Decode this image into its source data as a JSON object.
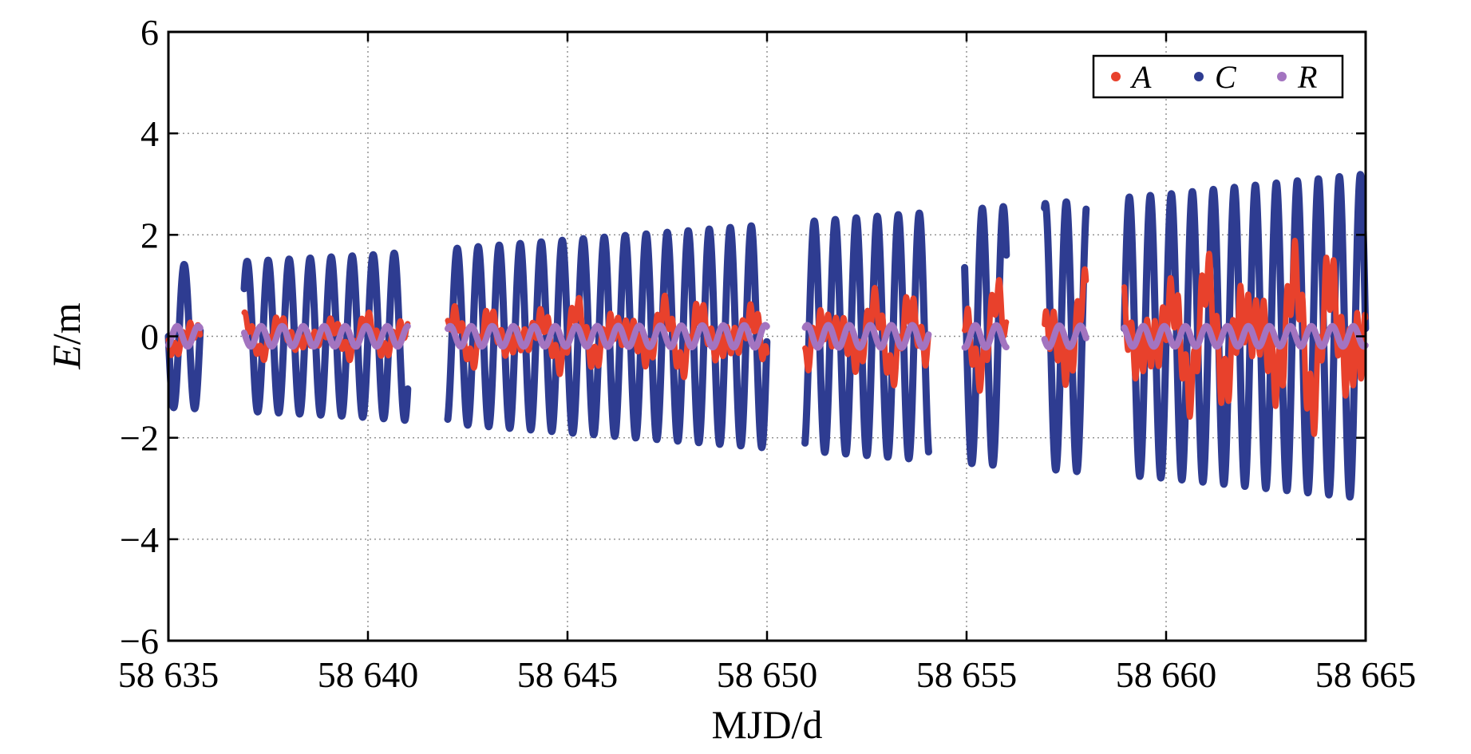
{
  "chart_data": {
    "type": "line",
    "title": "",
    "xlabel": "MJD/d",
    "ylabel_italic": "E",
    "ylabel_unit": "/m",
    "xlim": [
      58635,
      58665
    ],
    "ylim": [
      -6,
      6
    ],
    "xticks": [
      58635,
      58640,
      58645,
      58650,
      58655,
      58660,
      58665
    ],
    "xtick_labels": [
      "58 635",
      "58 640",
      "58 645",
      "58 650",
      "58 655",
      "58 660",
      "58 665"
    ],
    "yticks": [
      -6,
      -4,
      -2,
      0,
      2,
      4,
      6
    ],
    "ytick_labels": [
      "−6",
      "−4",
      "−2",
      "0",
      "2",
      "4",
      "6"
    ],
    "grid": true,
    "legend": "top-right",
    "data_gaps": [
      [
        58635.8,
        58636.9
      ],
      [
        58641.0,
        58642.0
      ],
      [
        58650.0,
        58650.95
      ],
      [
        58654.05,
        58654.95
      ],
      [
        58656.0,
        58656.95
      ],
      [
        58658.0,
        58658.95
      ]
    ],
    "cycles_per_day": 1.9,
    "series": [
      {
        "name": "A",
        "color": "#e8412c",
        "envelope": [
          [
            58635,
            0.5
          ],
          [
            58640,
            0.5
          ],
          [
            58645,
            0.8
          ],
          [
            58650,
            0.9
          ],
          [
            58655,
            1.1
          ],
          [
            58660,
            1.6
          ],
          [
            58665,
            2.2
          ]
        ]
      },
      {
        "name": "C",
        "color": "#2e3c91",
        "envelope": [
          [
            58635,
            1.4
          ],
          [
            58640,
            1.6
          ],
          [
            58645,
            1.9
          ],
          [
            58650,
            2.2
          ],
          [
            58655,
            2.5
          ],
          [
            58660,
            2.8
          ],
          [
            58665,
            3.2
          ]
        ]
      },
      {
        "name": "R",
        "color": "#a374c0",
        "envelope": [
          [
            58635,
            0.2
          ],
          [
            58640,
            0.2
          ],
          [
            58645,
            0.2
          ],
          [
            58650,
            0.22
          ],
          [
            58655,
            0.22
          ],
          [
            58660,
            0.2
          ],
          [
            58665,
            0.2
          ]
        ]
      }
    ]
  }
}
